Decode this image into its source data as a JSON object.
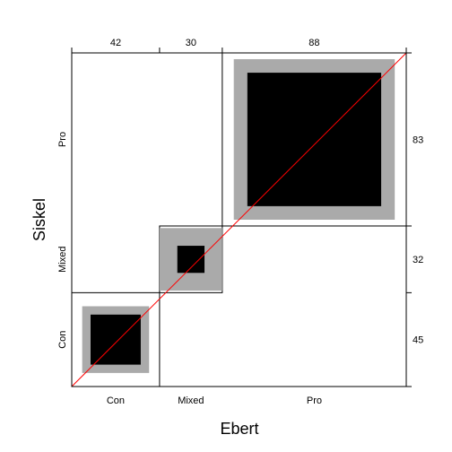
{
  "chart_data": {
    "type": "agreementplot",
    "x_title": "Ebert",
    "y_title": "Siskel",
    "categories": [
      "Con",
      "Mixed",
      "Pro"
    ],
    "x_marginals": [
      42,
      30,
      88
    ],
    "y_marginals": [
      45,
      32,
      83
    ],
    "exact_agreement": [
      24,
      13,
      64
    ],
    "partial_agreement": [
      32,
      30,
      77
    ],
    "colors": {
      "exact": "#000000",
      "partial": "#aaaaaa",
      "diagonal": "#ff0000",
      "grid": "#000000"
    }
  }
}
